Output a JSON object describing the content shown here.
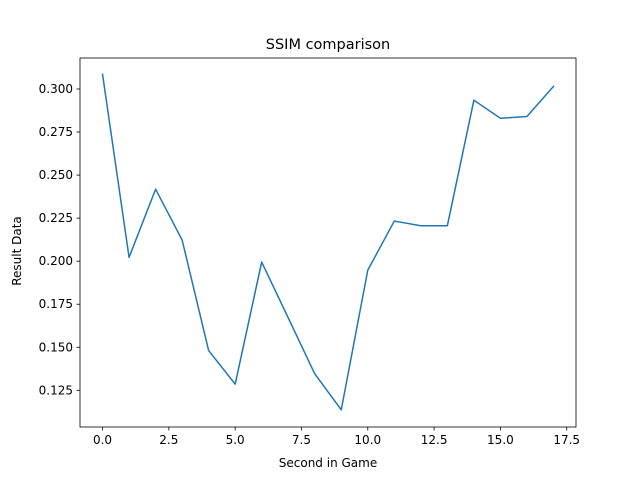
{
  "chart_data": {
    "type": "line",
    "title": "SSIM comparison",
    "xlabel": "Second in Game",
    "ylabel": "Result Data",
    "xlim": [
      -0.85,
      17.85
    ],
    "ylim": [
      0.1037,
      0.318
    ],
    "xticks": [
      0.0,
      2.5,
      5.0,
      7.5,
      10.0,
      12.5,
      15.0,
      17.5
    ],
    "xtick_labels": [
      "0.0",
      "2.5",
      "5.0",
      "7.5",
      "10.0",
      "12.5",
      "15.0",
      "17.5"
    ],
    "yticks": [
      0.125,
      0.15,
      0.175,
      0.2,
      0.225,
      0.25,
      0.275,
      0.3
    ],
    "ytick_labels": [
      "0.125",
      "0.150",
      "0.175",
      "0.200",
      "0.225",
      "0.250",
      "0.275",
      "0.300"
    ],
    "grid": false,
    "legend": "none",
    "series": [
      {
        "color": "#1f77b4",
        "x": [
          0,
          1,
          2,
          3,
          4,
          5,
          6,
          7,
          8,
          9,
          10,
          11,
          12,
          13,
          14,
          15,
          16,
          17
        ],
        "y": [
          0.3085,
          0.2022,
          0.2418,
          0.2123,
          0.1481,
          0.1286,
          0.1995,
          0.1671,
          0.1346,
          0.1137,
          0.1948,
          0.2233,
          0.2206,
          0.2206,
          0.2935,
          0.283,
          0.284,
          0.3015
        ]
      }
    ]
  }
}
